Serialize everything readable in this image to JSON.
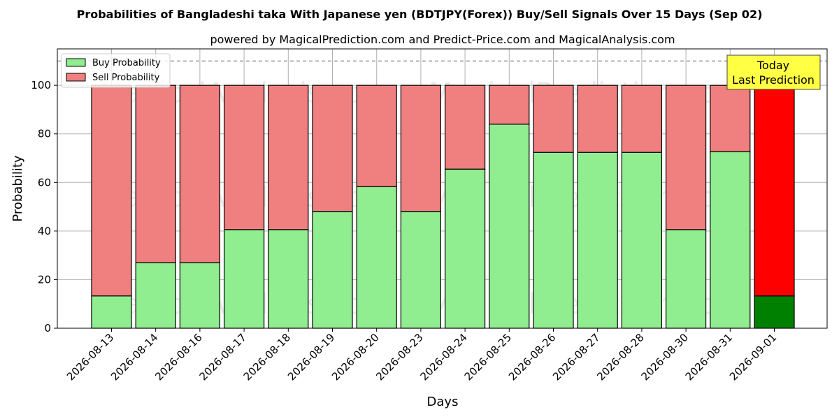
{
  "chart_data": {
    "type": "bar",
    "stacked": true,
    "title": "Probabilities of Bangladeshi taka With Japanese yen (BDTJPY(Forex)) Buy/Sell Signals Over 15 Days (Sep 02)",
    "subtitle": "powered by MagicalPrediction.com and Predict-Price.com and MagicalAnalysis.com",
    "xlabel": "Days",
    "ylabel": "Probability",
    "ylim": [
      0,
      115
    ],
    "yticks": [
      0,
      20,
      40,
      60,
      80,
      100
    ],
    "reference_line": 110,
    "grid": true,
    "legend_position": "top-left",
    "categories": [
      "2026-08-13",
      "2026-08-14",
      "2026-08-16",
      "2026-08-17",
      "2026-08-18",
      "2026-08-19",
      "2026-08-20",
      "2026-08-23",
      "2026-08-24",
      "2026-08-25",
      "2026-08-26",
      "2026-08-27",
      "2026-08-28",
      "2026-08-30",
      "2026-08-31",
      "2026-09-01"
    ],
    "series": [
      {
        "name": "Buy Probability",
        "color": "#90ee90",
        "values": [
          13.3,
          27.0,
          27.0,
          40.6,
          40.6,
          48.1,
          58.3,
          48.1,
          65.5,
          84.0,
          72.4,
          72.4,
          72.4,
          40.6,
          72.7,
          13.3
        ]
      },
      {
        "name": "Sell Probability",
        "color": "#f08080",
        "values": [
          86.7,
          73.0,
          73.0,
          59.4,
          59.4,
          51.9,
          41.7,
          51.9,
          34.5,
          16.0,
          27.6,
          27.6,
          27.6,
          59.4,
          27.3,
          86.7
        ]
      }
    ],
    "highlight": {
      "index": 15,
      "buy_color": "#008000",
      "sell_color": "#ff0000"
    },
    "annotation": {
      "line1": "Today",
      "line2": "Last Prediction",
      "background": "#ffff44"
    },
    "watermarks": [
      "MagicalAnalysis.com",
      "MagicalPrediction.com"
    ]
  }
}
